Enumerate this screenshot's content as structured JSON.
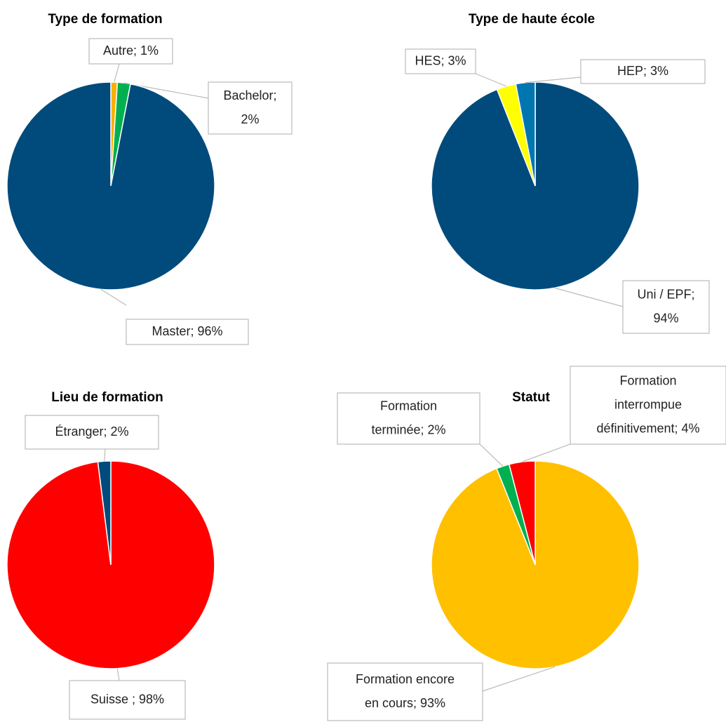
{
  "chart_data": [
    {
      "type": "pie",
      "title": "Type de formation",
      "values": [
        1,
        2,
        96
      ],
      "value_labels": [
        [
          "Autre; 1%"
        ],
        [
          "Bachelor;",
          "2%"
        ],
        [
          "Master; 96%"
        ]
      ],
      "colors": [
        "#f9b000",
        "#00b050",
        "#004b7c"
      ]
    },
    {
      "type": "pie",
      "title": "Type de haute école",
      "values": [
        94,
        3,
        3
      ],
      "value_labels": [
        [
          "Uni / EPF;",
          "94%"
        ],
        [
          "HES; 3%"
        ],
        [
          "HEP; 3%"
        ]
      ],
      "colors": [
        "#004b7c",
        "#ffff00",
        "#0076b0"
      ]
    },
    {
      "type": "pie",
      "title": "Lieu de formation",
      "values": [
        98,
        2
      ],
      "value_labels": [
        [
          "Suisse ; 98%"
        ],
        [
          "Étranger; 2%"
        ]
      ],
      "colors": [
        "#ff0000",
        "#004b7c"
      ]
    },
    {
      "type": "pie",
      "title": "Statut",
      "values": [
        93,
        2,
        4
      ],
      "value_labels": [
        [
          "Formation encore",
          "en cours; 93%"
        ],
        [
          "Formation",
          "terminée; 2%"
        ],
        [
          "Formation",
          "interrompue",
          "définitivement; 4%"
        ]
      ],
      "colors": [
        "#ffc000",
        "#00b050",
        "#ff0000"
      ]
    }
  ]
}
